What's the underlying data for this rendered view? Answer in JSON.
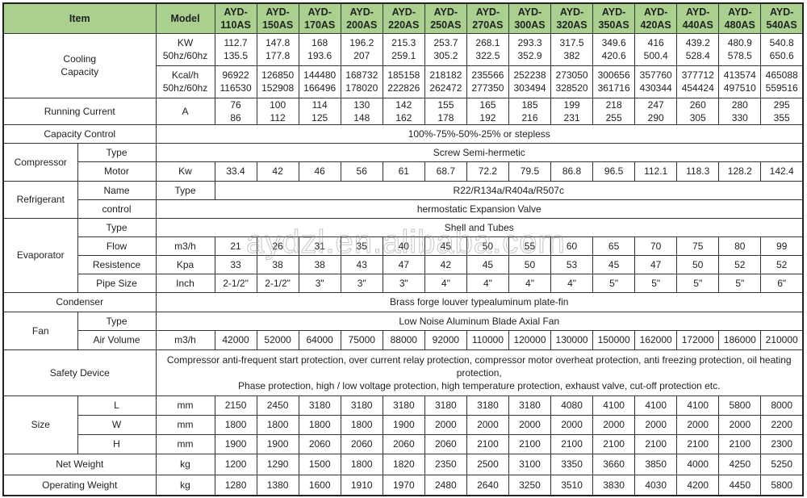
{
  "header": {
    "item": "Item",
    "model": "Model"
  },
  "models": [
    "AYD-\n110AS",
    "AYD-\n150AS",
    "AYD-\n170AS",
    "AYD-\n200AS",
    "AYD-\n220AS",
    "AYD-\n250AS",
    "AYD-\n270AS",
    "AYD-\n300AS",
    "AYD-\n320AS",
    "AYD-\n350AS",
    "AYD-\n420AS",
    "AYD-\n440AS",
    "AYD-\n480AS",
    "AYD-\n540AS"
  ],
  "cooling": {
    "label": "Cooling\nCapacity",
    "kw_unit": "KW\n50hz/60hz",
    "kw": [
      "112.7\n135.5",
      "147.8\n177.8",
      "168\n193.6",
      "196.2\n207",
      "215.3\n259.1",
      "253.7\n305.2",
      "268.1\n322.5",
      "293.3\n352.9",
      "317.5\n382",
      "349.6\n420.6",
      "416\n500.4",
      "439.2\n528.4",
      "480.9\n578.5",
      "540.8\n650.6"
    ],
    "kcal_unit": "Kcal/h\n50hz/60hz",
    "kcal": [
      "96922\n116530",
      "126850\n152908",
      "144480\n166496",
      "168732\n178020",
      "185158\n222826",
      "218182\n262472",
      "235566\n277350",
      "252238\n303494",
      "273050\n328520",
      "300656\n361716",
      "357760\n430344",
      "377712\n454424",
      "413574\n497510",
      "465088\n559516"
    ]
  },
  "running_current": {
    "label": "Running Current",
    "unit": "A",
    "values": [
      "76\n86",
      "100\n112",
      "114\n125",
      "130\n148",
      "142\n162",
      "155\n178",
      "165\n192",
      "185\n216",
      "199\n231",
      "218\n255",
      "247\n290",
      "260\n305",
      "280\n330",
      "295\n355"
    ]
  },
  "capacity_control": {
    "label": "Capacity Control",
    "value": "100%-75%-50%-25% or stepless"
  },
  "compressor": {
    "label": "Compressor",
    "type_label": "Type",
    "type_value": "Screw Semi-hermetic",
    "motor_label": "Motor",
    "motor_unit": "Kw",
    "motor": [
      "33.4",
      "42",
      "46",
      "56",
      "61",
      "68.7",
      "72.2",
      "79.5",
      "86.8",
      "96.5",
      "112.1",
      "118.3",
      "128.2",
      "142.4"
    ]
  },
  "refrigerant": {
    "label": "Refrigerant",
    "name_label": "Name",
    "name_unit": "Type",
    "name_value": "R22/R134a/R404a/R507c",
    "control_label": "control",
    "control_value": "hermostatic Expansion Valve"
  },
  "evaporator": {
    "label": "Evaporator",
    "type_label": "Type",
    "type_value": "Shell and Tubes",
    "flow_label": "Flow",
    "flow_unit": "m3/h",
    "flow": [
      "21",
      "26",
      "31",
      "35",
      "40",
      "45",
      "50",
      "55",
      "60",
      "65",
      "70",
      "75",
      "80",
      "99"
    ],
    "res_label": "Resistence",
    "res_unit": "Kpa",
    "res": [
      "33",
      "38",
      "38",
      "43",
      "47",
      "42",
      "45",
      "50",
      "53",
      "45",
      "47",
      "50",
      "52",
      "52"
    ],
    "pipe_label": "Pipe Size",
    "pipe_unit": "Inch",
    "pipe": [
      "2-1/2\"",
      "2-1/2\"",
      "3\"",
      "3\"",
      "3\"",
      "4\"",
      "4\"",
      "4\"",
      "4\"",
      "5\"",
      "5\"",
      "5\"",
      "5\"",
      "6\""
    ]
  },
  "condenser": {
    "label": "Condenser",
    "value": "Brass forge louver typealuminum plate-fin"
  },
  "fan": {
    "label": "Fan",
    "type_label": "Type",
    "type_value": "Low Noise Aluminum Blade Axial Fan",
    "air_label": "Air Volume",
    "air_unit": "m3/h",
    "air": [
      "42000",
      "52000",
      "64000",
      "75000",
      "88000",
      "92000",
      "110000",
      "120000",
      "130000",
      "150000",
      "162000",
      "172000",
      "186000",
      "210000"
    ]
  },
  "safety": {
    "label": "Safety Device",
    "value": "Compressor anti-frequent start protection, over current relay protection, compressor motor overheat protection, anti freezing protection, oil heating protection,\nPhase protection, high / low voltage protection, high temperature protection, exhaust valve, cut-off protection etc."
  },
  "size": {
    "label": "Size",
    "unit": "mm",
    "L_label": "L",
    "L": [
      "2150",
      "2450",
      "3180",
      "3180",
      "3180",
      "3180",
      "3180",
      "3180",
      "4080",
      "4100",
      "4100",
      "4100",
      "5800",
      "8000"
    ],
    "W_label": "W",
    "W": [
      "1800",
      "1800",
      "1800",
      "1800",
      "1900",
      "2000",
      "2000",
      "2000",
      "2000",
      "2000",
      "2000",
      "2000",
      "2000",
      "2200"
    ],
    "H_label": "H",
    "H": [
      "1900",
      "1900",
      "2060",
      "2060",
      "2060",
      "2060",
      "2100",
      "2100",
      "2100",
      "2100",
      "2100",
      "2100",
      "2100",
      "2300"
    ]
  },
  "net_weight": {
    "label": "Net Weight",
    "unit": "kg",
    "values": [
      "1200",
      "1290",
      "1500",
      "1800",
      "1820",
      "2350",
      "2500",
      "3100",
      "3350",
      "3660",
      "3850",
      "4000",
      "4250",
      "5250"
    ]
  },
  "operating_weight": {
    "label": "Operating Weight",
    "unit": "kg",
    "values": [
      "1280",
      "1380",
      "1600",
      "1910",
      "1970",
      "2480",
      "2640",
      "3250",
      "3510",
      "3830",
      "4030",
      "4200",
      "4450",
      "5800"
    ]
  },
  "watermark": "aydzl.en.alibaba.com",
  "colors": {
    "header_bg": "#a9d08e",
    "border": "#333333"
  }
}
